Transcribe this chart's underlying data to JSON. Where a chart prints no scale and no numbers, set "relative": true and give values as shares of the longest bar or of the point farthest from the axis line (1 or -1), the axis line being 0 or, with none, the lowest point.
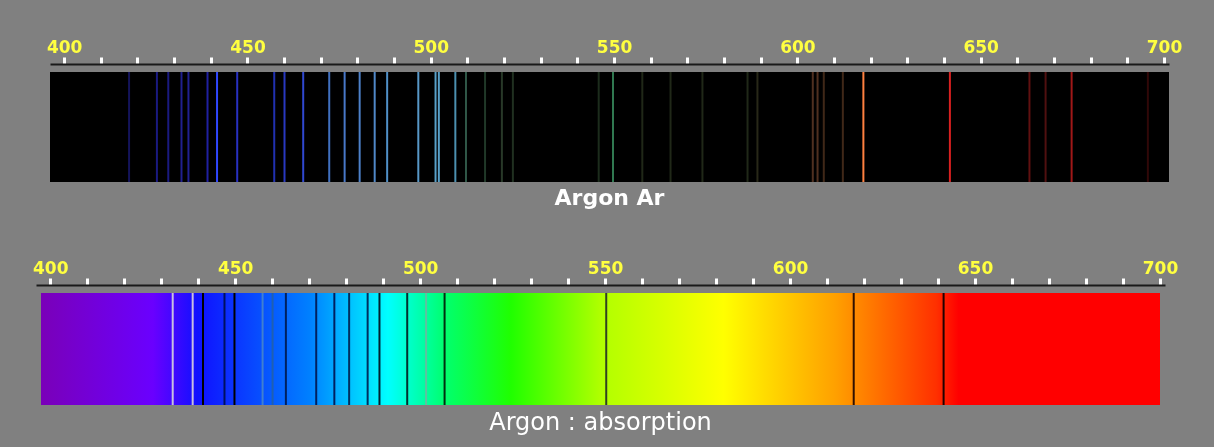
{
  "chart_data": [
    {
      "type": "bar",
      "title": "Argon Ar",
      "relative": true,
      "xlim": [
        397.5,
        700
      ],
      "xticks": [
        400,
        {
          "value": 410,
          "label": null
        },
        {
          "value": 420,
          "label": null
        },
        {
          "value": 430,
          "label": null
        },
        {
          "value": 440,
          "label": null
        },
        450,
        {
          "value": 460,
          "label": null
        },
        {
          "value": 470,
          "label": null
        },
        {
          "value": 480,
          "label": null
        },
        {
          "value": 490,
          "label": null
        },
        500,
        {
          "value": 510,
          "label": null
        },
        {
          "value": 520,
          "label": null
        },
        {
          "value": 530,
          "label": null
        },
        {
          "value": 540,
          "label": null
        },
        550,
        {
          "value": 560,
          "label": null
        },
        {
          "value": 570,
          "label": null
        },
        {
          "value": 580,
          "label": null
        },
        {
          "value": 590,
          "label": null
        },
        600,
        {
          "value": 610,
          "label": null
        },
        {
          "value": 620,
          "label": null
        },
        {
          "value": 630,
          "label": null
        },
        {
          "value": 640,
          "label": null
        },
        650,
        {
          "value": 660,
          "label": null
        },
        {
          "value": 670,
          "label": null
        },
        {
          "value": 680,
          "label": null
        },
        {
          "value": 690,
          "label": null
        },
        700
      ],
      "x": [
        417.7,
        425.3,
        428.4,
        432.0,
        433.9,
        439.1,
        441.7,
        447.2,
        457.3,
        460.1,
        465.2,
        472.3,
        476.5,
        480.6,
        484.7,
        488.1,
        496.6,
        501.3,
        502.2,
        506.7,
        509.6,
        514.8,
        519.4,
        522.4,
        545.8,
        549.7,
        557.7,
        565.4,
        574.1,
        586.4,
        589.1,
        604.2,
        605.5,
        607.2,
        612.4,
        618.0,
        641.6,
        663.3,
        667.7,
        674.8,
        695.6
      ],
      "values": [
        1,
        1,
        1,
        1,
        1,
        1,
        1,
        1,
        1,
        1,
        1,
        1,
        1,
        1,
        1,
        1,
        1,
        1,
        1,
        1,
        1,
        1,
        1,
        1,
        1,
        1,
        1,
        1,
        1,
        1,
        1,
        1,
        1,
        1,
        1,
        1,
        1,
        1,
        1,
        1,
        1
      ],
      "colors": [
        "#14145a",
        "#1a1a80",
        "#1a1a80",
        "#202090",
        "#202090",
        "#2020a0",
        "#3048ff",
        "#2830c0",
        "#2030b0",
        "#2838c0",
        "#3048d0",
        "#4070c0",
        "#4878c8",
        "#4c80c8",
        "#5088c8",
        "#5090c8",
        "#5898c8",
        "#58a0c8",
        "#58a0c8",
        "#4c90b0",
        "#305848",
        "#203828",
        "#283828",
        "#203020",
        "#1c2c1c",
        "#307850",
        "#202818",
        "#202818",
        "#202818",
        "#202818",
        "#282818",
        "#503020",
        "#503020",
        "#402818",
        "#402818",
        "#ff8040",
        "#d82020",
        "#601010",
        "#501010",
        "#a01818",
        "#300808"
      ]
    },
    {
      "type": "bar",
      "title": "Argon  : absorption",
      "relative": true,
      "xlim": [
        397.5,
        700
      ],
      "xticks": [
        400,
        {
          "value": 410,
          "label": null
        },
        {
          "value": 420,
          "label": null
        },
        {
          "value": 430,
          "label": null
        },
        {
          "value": 440,
          "label": null
        },
        450,
        {
          "value": 460,
          "label": null
        },
        {
          "value": 470,
          "label": null
        },
        {
          "value": 480,
          "label": null
        },
        {
          "value": 490,
          "label": null
        },
        500,
        {
          "value": 510,
          "label": null
        },
        {
          "value": 520,
          "label": null
        },
        {
          "value": 530,
          "label": null
        },
        {
          "value": 540,
          "label": null
        },
        550,
        {
          "value": 560,
          "label": null
        },
        {
          "value": 570,
          "label": null
        },
        {
          "value": 580,
          "label": null
        },
        {
          "value": 590,
          "label": null
        },
        600,
        {
          "value": 610,
          "label": null
        },
        {
          "value": 620,
          "label": null
        },
        {
          "value": 630,
          "label": null
        },
        {
          "value": 640,
          "label": null
        },
        650,
        {
          "value": 660,
          "label": null
        },
        {
          "value": 670,
          "label": null
        },
        {
          "value": 680,
          "label": null
        },
        {
          "value": 690,
          "label": null
        },
        700
      ],
      "x": [
        433.1,
        438.5,
        441.3,
        447.1,
        449.8,
        457.4,
        460.1,
        463.7,
        471.9,
        476.8,
        480.8,
        485.8,
        489.0,
        496.5,
        501.6,
        506.6,
        550.3,
        617.2,
        641.5
      ],
      "values": [
        1,
        1,
        1,
        1,
        1,
        1,
        1,
        1,
        1,
        1,
        1,
        1,
        1,
        1,
        1,
        1,
        1,
        1,
        1
      ],
      "colors": [
        "#c8c0e0",
        "#c8c0e0",
        "#000000",
        "#001060",
        "#000000",
        "#4080d0",
        "#2060b0",
        "#002060",
        "#002060",
        "#002060",
        "#003060",
        "#003060",
        "#002030",
        "#003030",
        "#60c0a0",
        "#003010",
        "#304020",
        "#301000",
        "#200000"
      ]
    }
  ]
}
